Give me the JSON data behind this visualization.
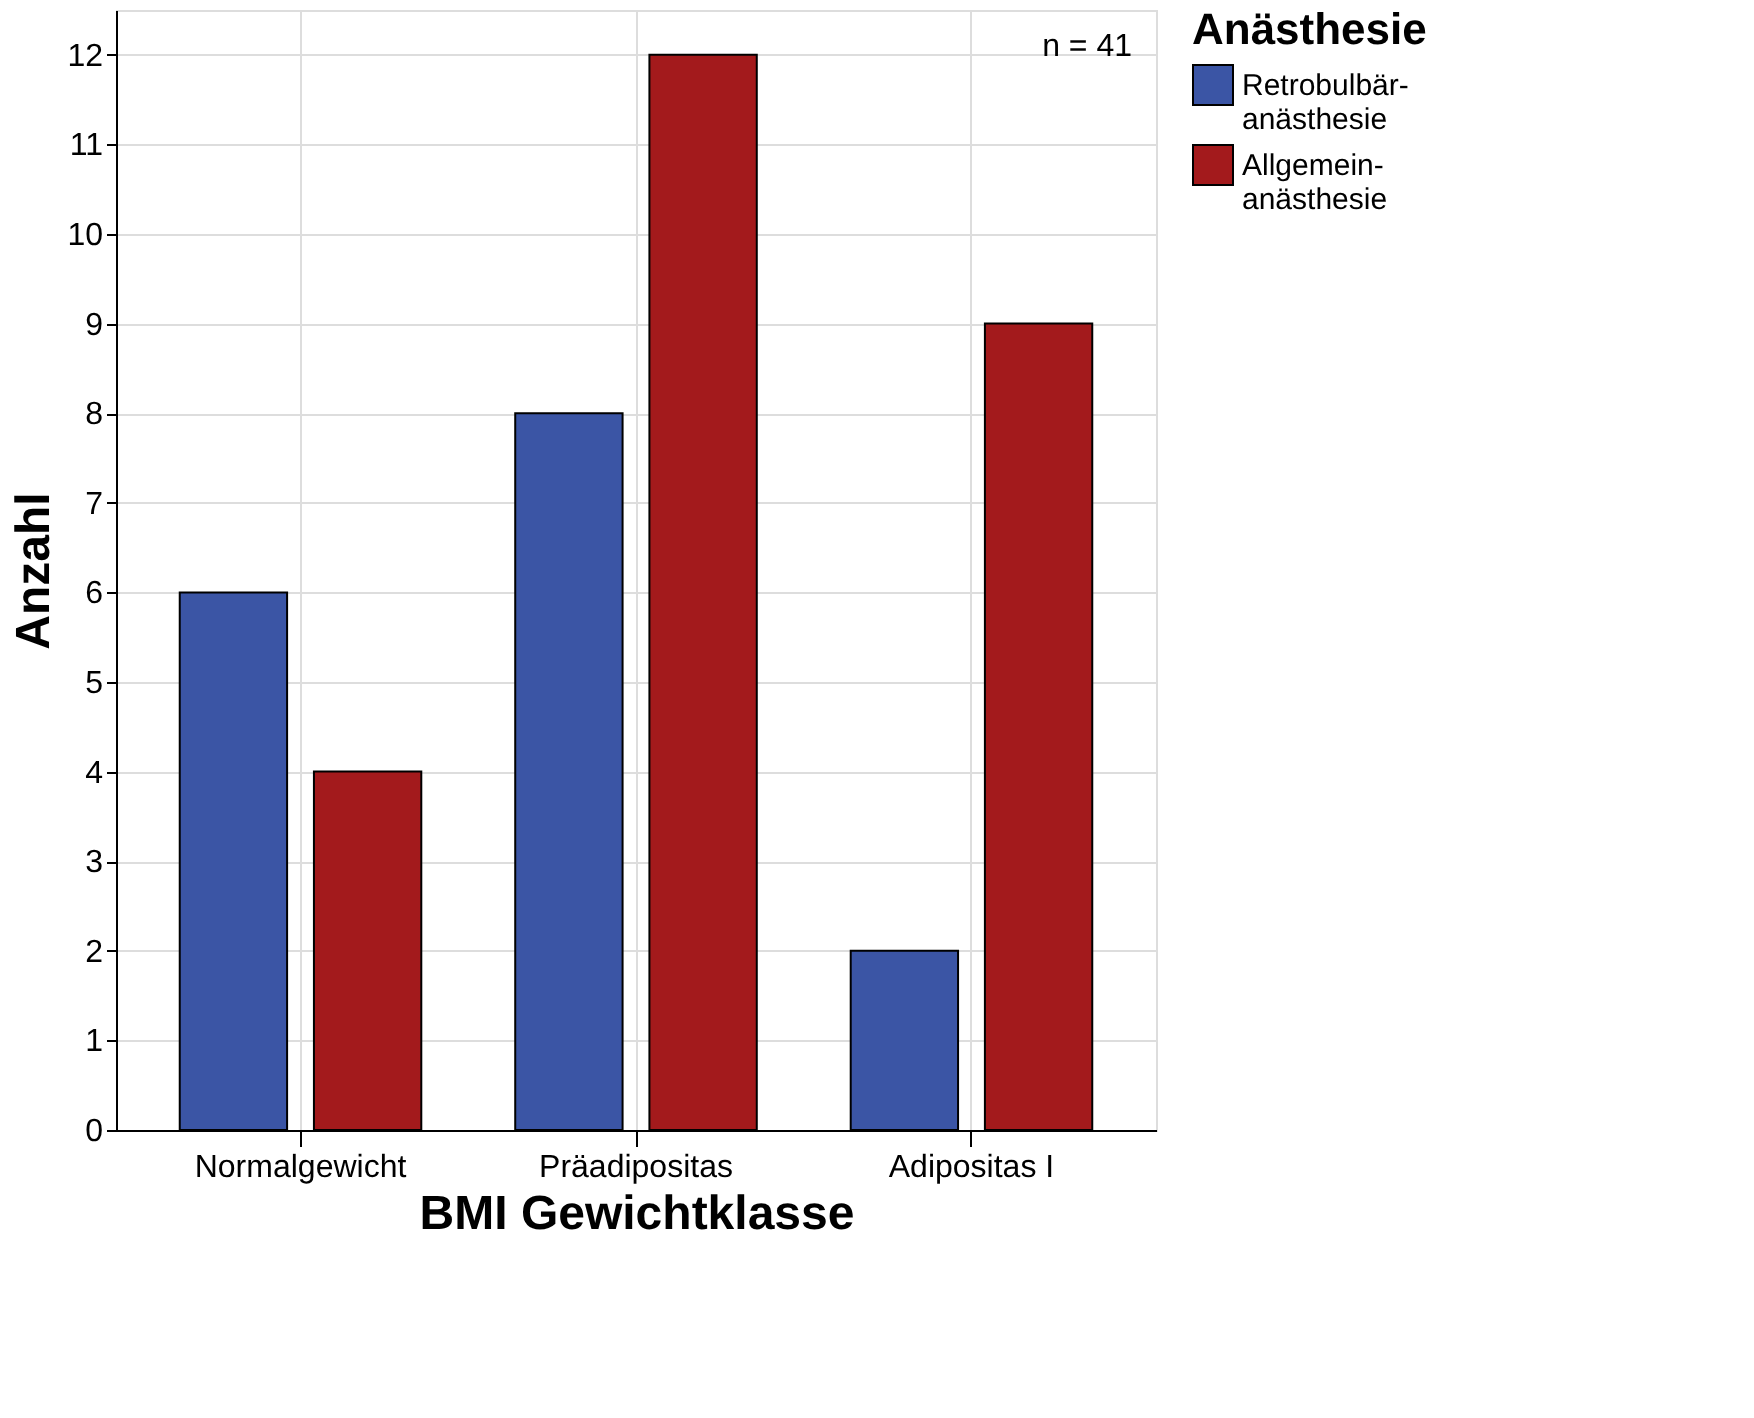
{
  "chart_data": {
    "type": "bar",
    "xlabel": "BMI Gewichtklasse",
    "ylabel": "Anzahl",
    "legend_title": "Anästhesie",
    "categories": [
      "Normalgewicht",
      "Präadipositas",
      "Adipositas I"
    ],
    "series": [
      {
        "name": "Retrobulbär-anästhesie",
        "color": "#3b55a5",
        "values": [
          6,
          8,
          2
        ]
      },
      {
        "name": "Allgemein-anästhesie",
        "color": "#a31a1c",
        "values": [
          4,
          12,
          9
        ]
      }
    ],
    "ylim": [
      0,
      12.5
    ],
    "yticks": [
      0,
      1,
      2,
      3,
      4,
      5,
      6,
      7,
      8,
      9,
      10,
      11,
      12
    ],
    "grid": true,
    "legend": "right",
    "annotations": [
      "n = 41"
    ]
  }
}
